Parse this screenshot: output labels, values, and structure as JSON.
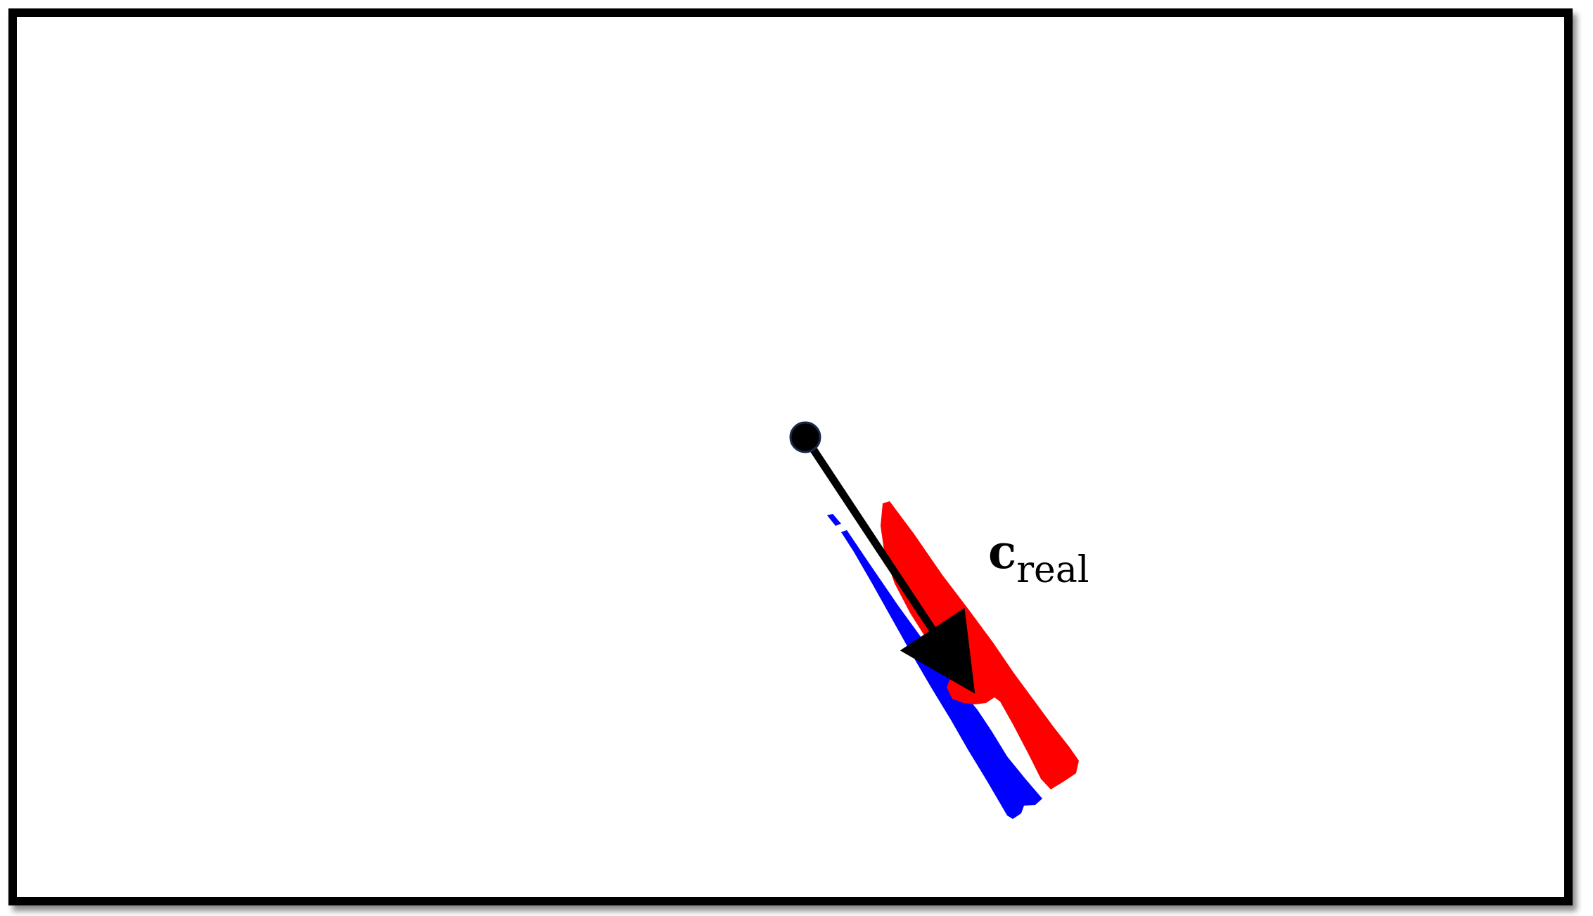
{
  "diagram": {
    "vector_label": {
      "main": "c",
      "subscript": "real"
    },
    "colors": {
      "red_object": "#ff0000",
      "blue_object": "#0000ff",
      "arrow": "#000000",
      "origin_point": "#000000",
      "frame_border": "#000000",
      "background": "#ffffff"
    }
  }
}
